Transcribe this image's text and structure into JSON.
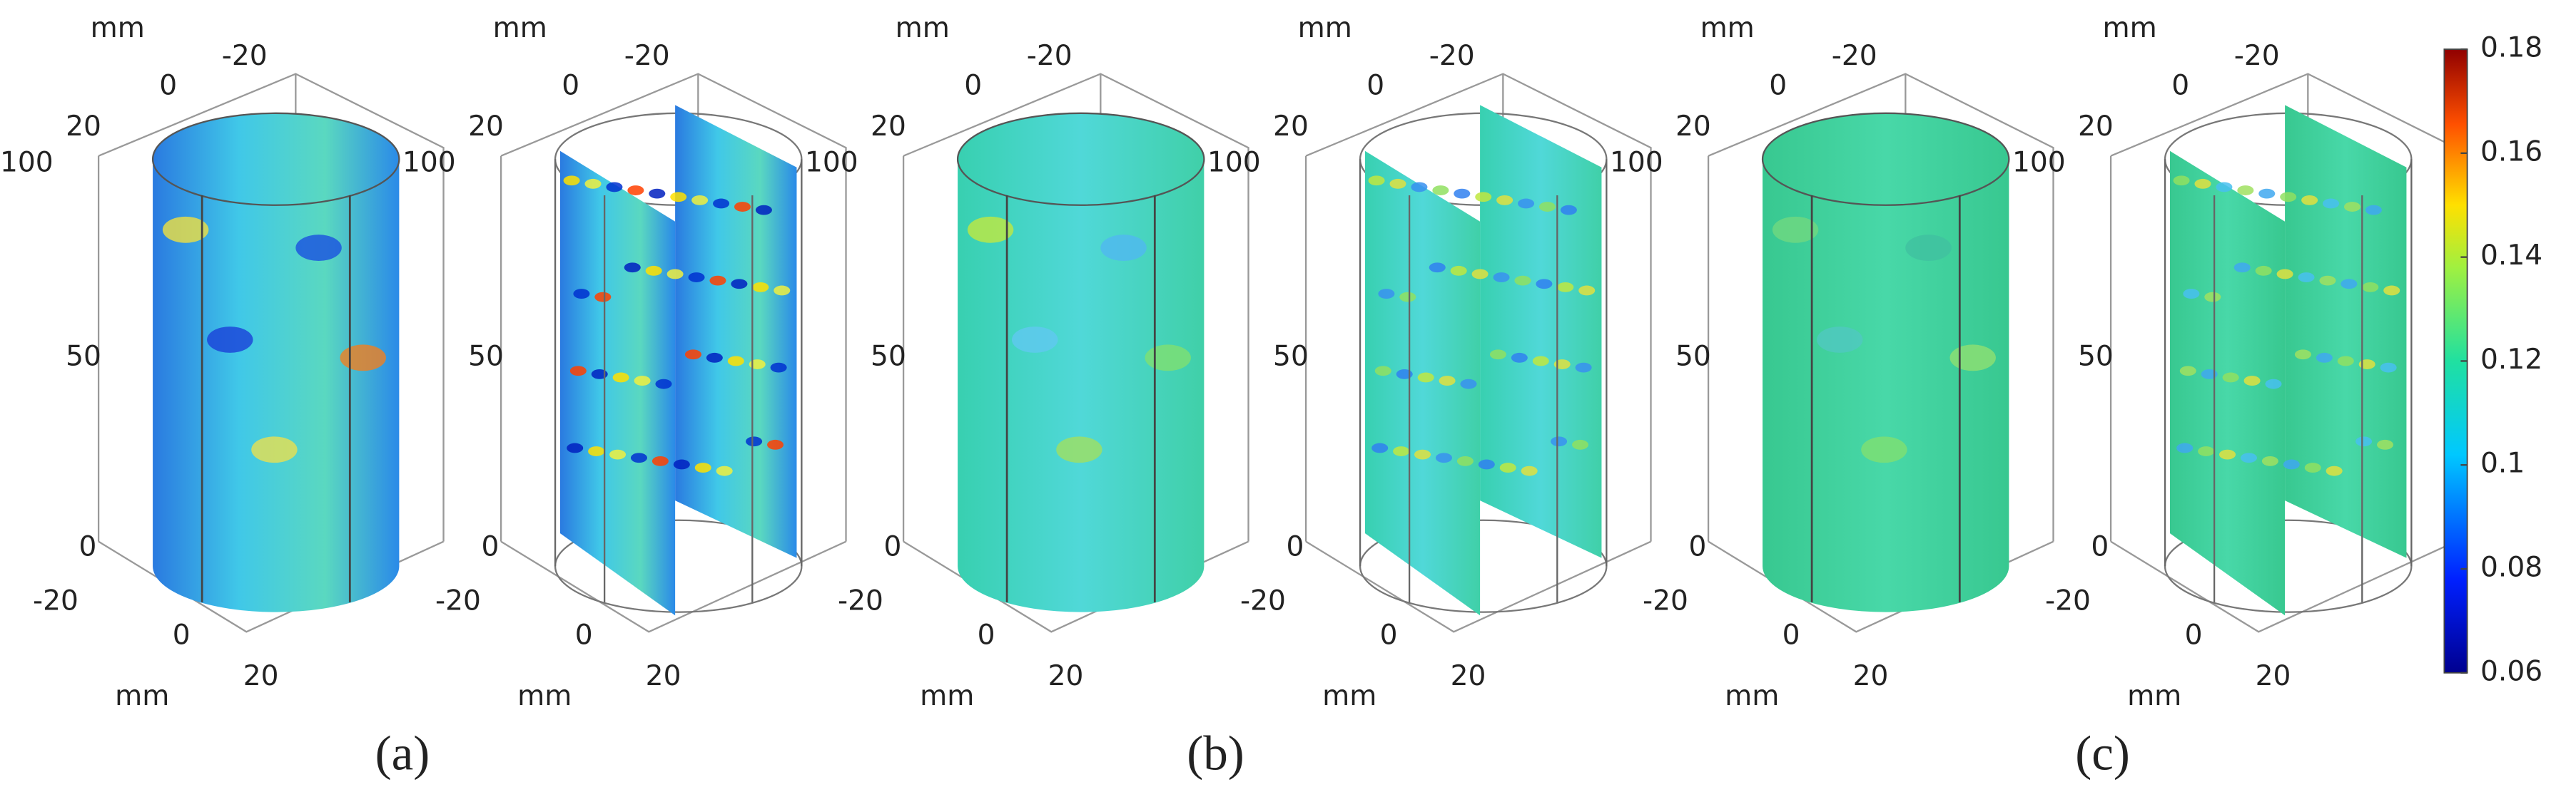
{
  "views": [
    {
      "unit": "mm",
      "y_ticks": [
        -20,
        0,
        20
      ],
      "z_ticks": [
        100,
        50,
        0
      ],
      "x_ticks": [
        -20,
        0,
        20
      ]
    },
    {
      "unit": "mm",
      "y_ticks": [
        -20,
        0,
        20
      ],
      "z_ticks": [
        100,
        50,
        0
      ],
      "x_ticks": [
        -20,
        0,
        20
      ]
    },
    {
      "unit": "mm",
      "y_ticks": [
        -20,
        0,
        20
      ],
      "z_ticks": [
        100,
        50,
        0
      ],
      "x_ticks": [
        -20,
        0,
        20
      ]
    },
    {
      "unit": "mm",
      "y_ticks": [
        -20,
        0,
        20
      ],
      "z_ticks": [
        100,
        50,
        0
      ],
      "x_ticks": [
        -20,
        0,
        20
      ]
    },
    {
      "unit": "mm",
      "y_ticks": [
        -20,
        0,
        20
      ],
      "z_ticks": [
        100,
        50,
        0
      ],
      "x_ticks": [
        -20,
        0,
        20
      ]
    },
    {
      "unit": "mm",
      "y_ticks": [
        -20,
        0,
        20
      ],
      "z_ticks": [
        100,
        50,
        0
      ],
      "x_ticks": [
        -20,
        0,
        20
      ]
    }
  ],
  "panel_labels": [
    "(a)",
    "(b)",
    "(c)"
  ],
  "colorbar": {
    "range": [
      0.06,
      0.18
    ],
    "ticks": [
      0.06,
      0.08,
      0.1,
      0.12,
      0.14,
      0.16,
      0.18
    ]
  }
}
